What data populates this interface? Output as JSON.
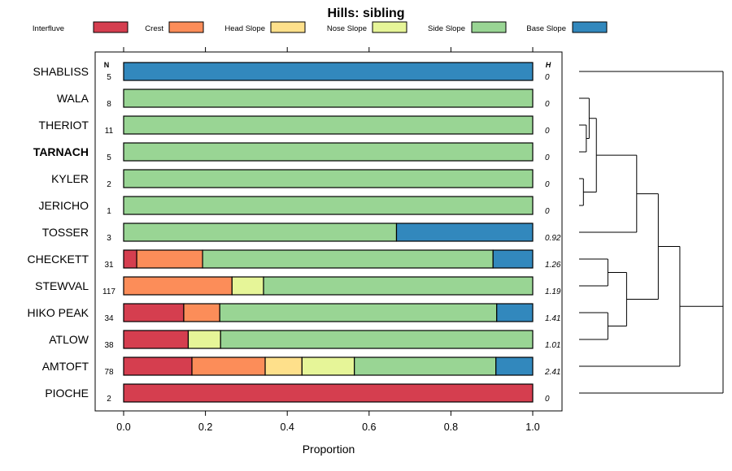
{
  "chart_data": {
    "type": "stacked-bar",
    "title": "Hills: sibling",
    "xlabel": "Proportion",
    "xlim": [
      0,
      1
    ],
    "x_ticks": [
      "0.0",
      "0.2",
      "0.4",
      "0.6",
      "0.8",
      "1.0"
    ],
    "n_header": "N",
    "h_header": "H",
    "highlight": "TARNACH",
    "legend": [
      {
        "name": "Interfluve",
        "color": "#D53E4F"
      },
      {
        "name": "Crest",
        "color": "#FC8D59"
      },
      {
        "name": "Head Slope",
        "color": "#FEE08B"
      },
      {
        "name": "Nose Slope",
        "color": "#E6F598"
      },
      {
        "name": "Side Slope",
        "color": "#99D594"
      },
      {
        "name": "Base Slope",
        "color": "#3288BD"
      }
    ],
    "rows": [
      {
        "name": "SHABLISS",
        "n": "5",
        "h": "0",
        "values": [
          0,
          0,
          0,
          0,
          0,
          1.0
        ]
      },
      {
        "name": "WALA",
        "n": "8",
        "h": "0",
        "values": [
          0,
          0,
          0,
          0,
          1.0,
          0
        ]
      },
      {
        "name": "THERIOT",
        "n": "11",
        "h": "0",
        "values": [
          0,
          0,
          0,
          0,
          1.0,
          0
        ]
      },
      {
        "name": "TARNACH",
        "n": "5",
        "h": "0",
        "values": [
          0,
          0,
          0,
          0,
          1.0,
          0
        ]
      },
      {
        "name": "KYLER",
        "n": "2",
        "h": "0",
        "values": [
          0,
          0,
          0,
          0,
          1.0,
          0
        ]
      },
      {
        "name": "JERICHO",
        "n": "1",
        "h": "0",
        "values": [
          0,
          0,
          0,
          0,
          1.0,
          0
        ]
      },
      {
        "name": "TOSSER",
        "n": "3",
        "h": "0.92",
        "values": [
          0,
          0,
          0,
          0,
          0.667,
          0.333
        ]
      },
      {
        "name": "CHECKETT",
        "n": "31",
        "h": "1.26",
        "values": [
          0.032,
          0.161,
          0,
          0,
          0.71,
          0.097
        ]
      },
      {
        "name": "STEWVAL",
        "n": "117",
        "h": "1.19",
        "values": [
          0,
          0.265,
          0,
          0.077,
          0.658,
          0
        ]
      },
      {
        "name": "HIKO PEAK",
        "n": "34",
        "h": "1.41",
        "values": [
          0.147,
          0.088,
          0,
          0,
          0.677,
          0.088
        ]
      },
      {
        "name": "ATLOW",
        "n": "38",
        "h": "1.01",
        "values": [
          0.158,
          0,
          0,
          0.079,
          0.763,
          0
        ]
      },
      {
        "name": "AMTOFT",
        "n": "78",
        "h": "2.41",
        "values": [
          0.167,
          0.179,
          0.09,
          0.128,
          0.346,
          0.09
        ]
      },
      {
        "name": "PIOCHE",
        "n": "2",
        "h": "0",
        "values": [
          1.0,
          0,
          0,
          0,
          0,
          0
        ]
      }
    ],
    "dendrogram": {
      "merges": [
        {
          "a": "r:4",
          "b": "r:5",
          "height": 0.03
        },
        {
          "a": "r:2",
          "b": "r:3",
          "height": 0.05
        },
        {
          "a": "r:1",
          "b": "m:1",
          "height": 0.07
        },
        {
          "a": "m:2",
          "b": "m:0",
          "height": 0.12
        },
        {
          "a": "m:3",
          "b": "r:6",
          "height": 0.4
        },
        {
          "a": "r:7",
          "b": "r:8",
          "height": 0.2
        },
        {
          "a": "r:9",
          "b": "r:10",
          "height": 0.2
        },
        {
          "a": "m:5",
          "b": "m:6",
          "height": 0.33
        },
        {
          "a": "m:4",
          "b": "m:7",
          "height": 0.55
        },
        {
          "a": "m:8",
          "b": "r:11",
          "height": 0.7
        },
        {
          "a": "r:0",
          "b": "m:9",
          "height": 1.0
        },
        {
          "a": "m:10",
          "b": "r:12",
          "height": 1.0
        }
      ]
    }
  }
}
